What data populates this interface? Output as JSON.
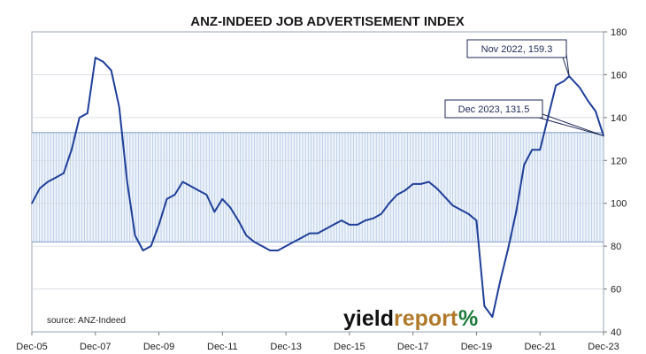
{
  "chart_data": {
    "type": "line",
    "title": "ANZ-INDEED JOB ADVERTISEMENT INDEX",
    "x_tick_labels": [
      "Dec-05",
      "Dec-07",
      "Dec-09",
      "Dec-11",
      "Dec-13",
      "Dec-15",
      "Dec-17",
      "Dec-19",
      "Dec-21",
      "Dec-23"
    ],
    "y_tick_labels": [
      "40",
      "60",
      "80",
      "100",
      "120",
      "140",
      "160",
      "180"
    ],
    "ylim": [
      40,
      180
    ],
    "x_range": [
      "Dec-05",
      "Dec-23"
    ],
    "grid": true,
    "shaded_band": {
      "from": 82,
      "to": 133
    },
    "series": [
      {
        "color": "#1f3f99",
        "points": [
          [
            "Dec-05",
            100
          ],
          [
            "Mar-06",
            107
          ],
          [
            "Jun-06",
            110
          ],
          [
            "Sep-06",
            112
          ],
          [
            "Dec-06",
            114
          ],
          [
            "Mar-07",
            125
          ],
          [
            "Jun-07",
            140
          ],
          [
            "Sep-07",
            142
          ],
          [
            "Dec-07",
            168
          ],
          [
            "Mar-08",
            166
          ],
          [
            "Jun-08",
            162
          ],
          [
            "Sep-08",
            145
          ],
          [
            "Dec-08",
            110
          ],
          [
            "Mar-09",
            85
          ],
          [
            "Jun-09",
            78
          ],
          [
            "Sep-09",
            80
          ],
          [
            "Dec-09",
            90
          ],
          [
            "Mar-10",
            102
          ],
          [
            "Jun-10",
            104
          ],
          [
            "Sep-10",
            110
          ],
          [
            "Dec-10",
            108
          ],
          [
            "Mar-11",
            106
          ],
          [
            "Jun-11",
            104
          ],
          [
            "Sep-11",
            96
          ],
          [
            "Dec-11",
            102
          ],
          [
            "Mar-12",
            98
          ],
          [
            "Jun-12",
            92
          ],
          [
            "Sep-12",
            85
          ],
          [
            "Dec-12",
            82
          ],
          [
            "Mar-13",
            80
          ],
          [
            "Jun-13",
            78
          ],
          [
            "Sep-13",
            78
          ],
          [
            "Dec-13",
            80
          ],
          [
            "Mar-14",
            82
          ],
          [
            "Jun-14",
            84
          ],
          [
            "Sep-14",
            86
          ],
          [
            "Dec-14",
            86
          ],
          [
            "Mar-15",
            88
          ],
          [
            "Jun-15",
            90
          ],
          [
            "Sep-15",
            92
          ],
          [
            "Dec-15",
            90
          ],
          [
            "Mar-16",
            90
          ],
          [
            "Jun-16",
            92
          ],
          [
            "Sep-16",
            93
          ],
          [
            "Dec-16",
            95
          ],
          [
            "Mar-17",
            100
          ],
          [
            "Jun-17",
            104
          ],
          [
            "Sep-17",
            106
          ],
          [
            "Dec-17",
            109
          ],
          [
            "Mar-18",
            109
          ],
          [
            "Jun-18",
            110
          ],
          [
            "Sep-18",
            107
          ],
          [
            "Dec-18",
            103
          ],
          [
            "Mar-19",
            99
          ],
          [
            "Jun-19",
            97
          ],
          [
            "Sep-19",
            95
          ],
          [
            "Dec-19",
            92
          ],
          [
            "Mar-20",
            52
          ],
          [
            "Jun-20",
            47
          ],
          [
            "Sep-20",
            64
          ],
          [
            "Dec-20",
            79
          ],
          [
            "Mar-21",
            96
          ],
          [
            "Jun-21",
            118
          ],
          [
            "Sep-21",
            125
          ],
          [
            "Dec-21",
            125
          ],
          [
            "Mar-22",
            140
          ],
          [
            "Jun-22",
            155
          ],
          [
            "Sep-22",
            157
          ],
          [
            "Nov-22",
            159.3
          ],
          [
            "Mar-23",
            154
          ],
          [
            "Jun-23",
            148
          ],
          [
            "Sep-23",
            143
          ],
          [
            "Dec-23",
            131.5
          ]
        ]
      }
    ],
    "annotations": [
      {
        "text": "Nov 2022, 159.3",
        "x": "Nov-22",
        "y": 159.3
      },
      {
        "text": "Dec 2023, 131.5",
        "x": "Dec-23",
        "y": 131.5
      }
    ],
    "source": "source: ANZ-Indeed"
  },
  "brand": {
    "yield": "yield",
    "report": "report",
    "percent": "%"
  }
}
